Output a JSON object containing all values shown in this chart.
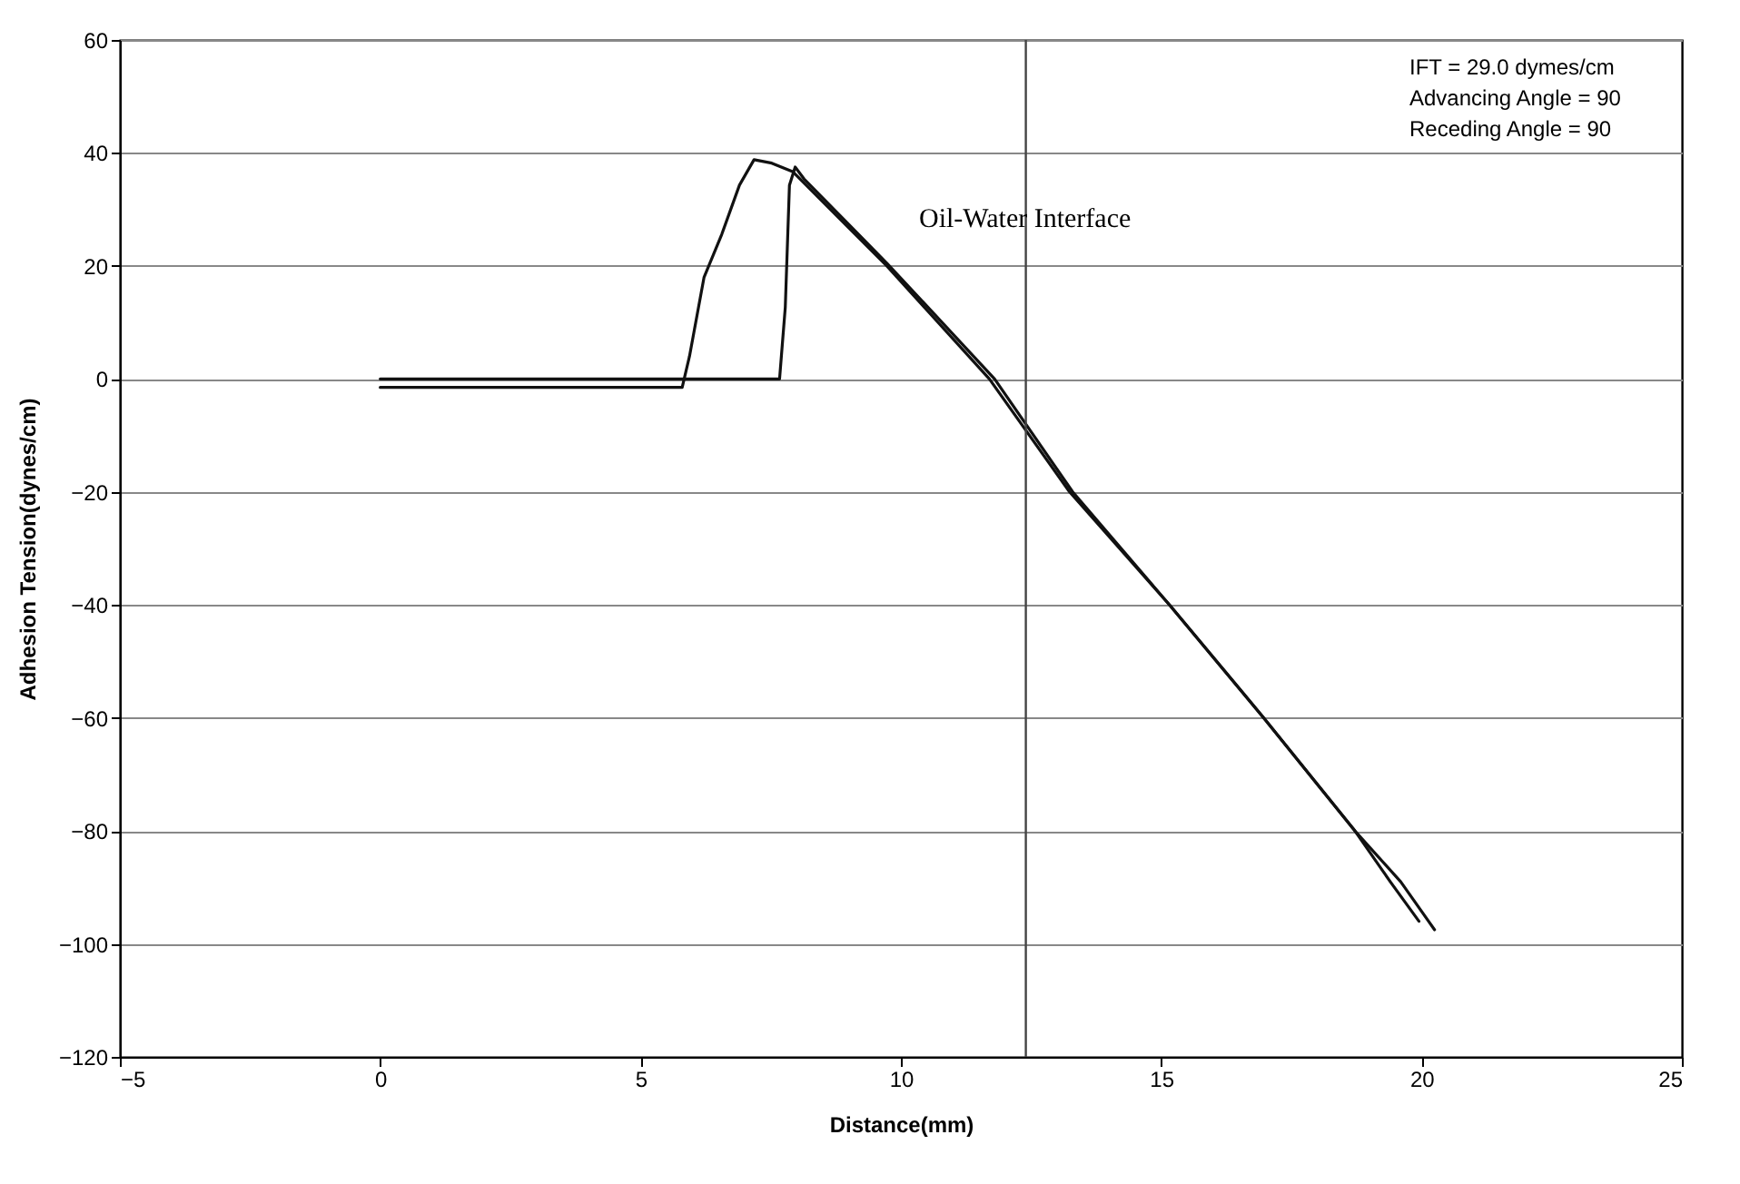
{
  "chart_data": {
    "type": "line",
    "xlabel": "Distance(mm)",
    "ylabel": "Adhesion Tension(dynes/cm)",
    "annotations": [
      "IFT = 29.0 dymes/cm",
      "Advancing Angle = 90",
      "Receding Angle = 90",
      "Oil-Water Interface"
    ],
    "xlim": [
      -5,
      25
    ],
    "xticks": [
      -5,
      0,
      5,
      10,
      15,
      20,
      25
    ],
    "ylim": [
      -120,
      60
    ],
    "yticks": [
      -120,
      -100,
      -80,
      -60,
      -40,
      -20,
      0,
      20,
      40,
      60
    ],
    "grid": "y",
    "marker": "none",
    "line_style": "solid",
    "ref_lines": [
      {
        "axis": "x",
        "value": 12.4,
        "color": "#444444"
      }
    ],
    "series": [
      {
        "color": "#111111",
        "x": [
          0,
          2,
          4,
          5.8,
          5.94,
          6.22,
          6.56,
          6.9,
          7.18,
          7.52,
          7.92,
          9.73,
          11.7,
          13.24,
          15.16,
          16.97,
          18.72,
          19.6,
          20.25
        ],
        "values": [
          -1.5,
          -1.5,
          -1.5,
          -1.5,
          4,
          18,
          25.6,
          34.3,
          38.8,
          38.2,
          36.7,
          20,
          0,
          -20,
          -40,
          -60,
          -80,
          -89,
          -97.5
        ]
      },
      {
        "color": "#111111",
        "x": [
          0,
          2,
          4,
          6,
          7.67,
          7.78,
          7.86,
          7.97,
          8.14,
          9.73,
          11.8,
          13.3,
          15.16,
          16.97,
          18.72,
          19.4,
          19.95
        ],
        "values": [
          0,
          0,
          0,
          0,
          0,
          12.7,
          34.3,
          37.5,
          35.4,
          20.5,
          0,
          -20,
          -40,
          -60,
          -80,
          -89,
          -96
        ]
      }
    ]
  }
}
